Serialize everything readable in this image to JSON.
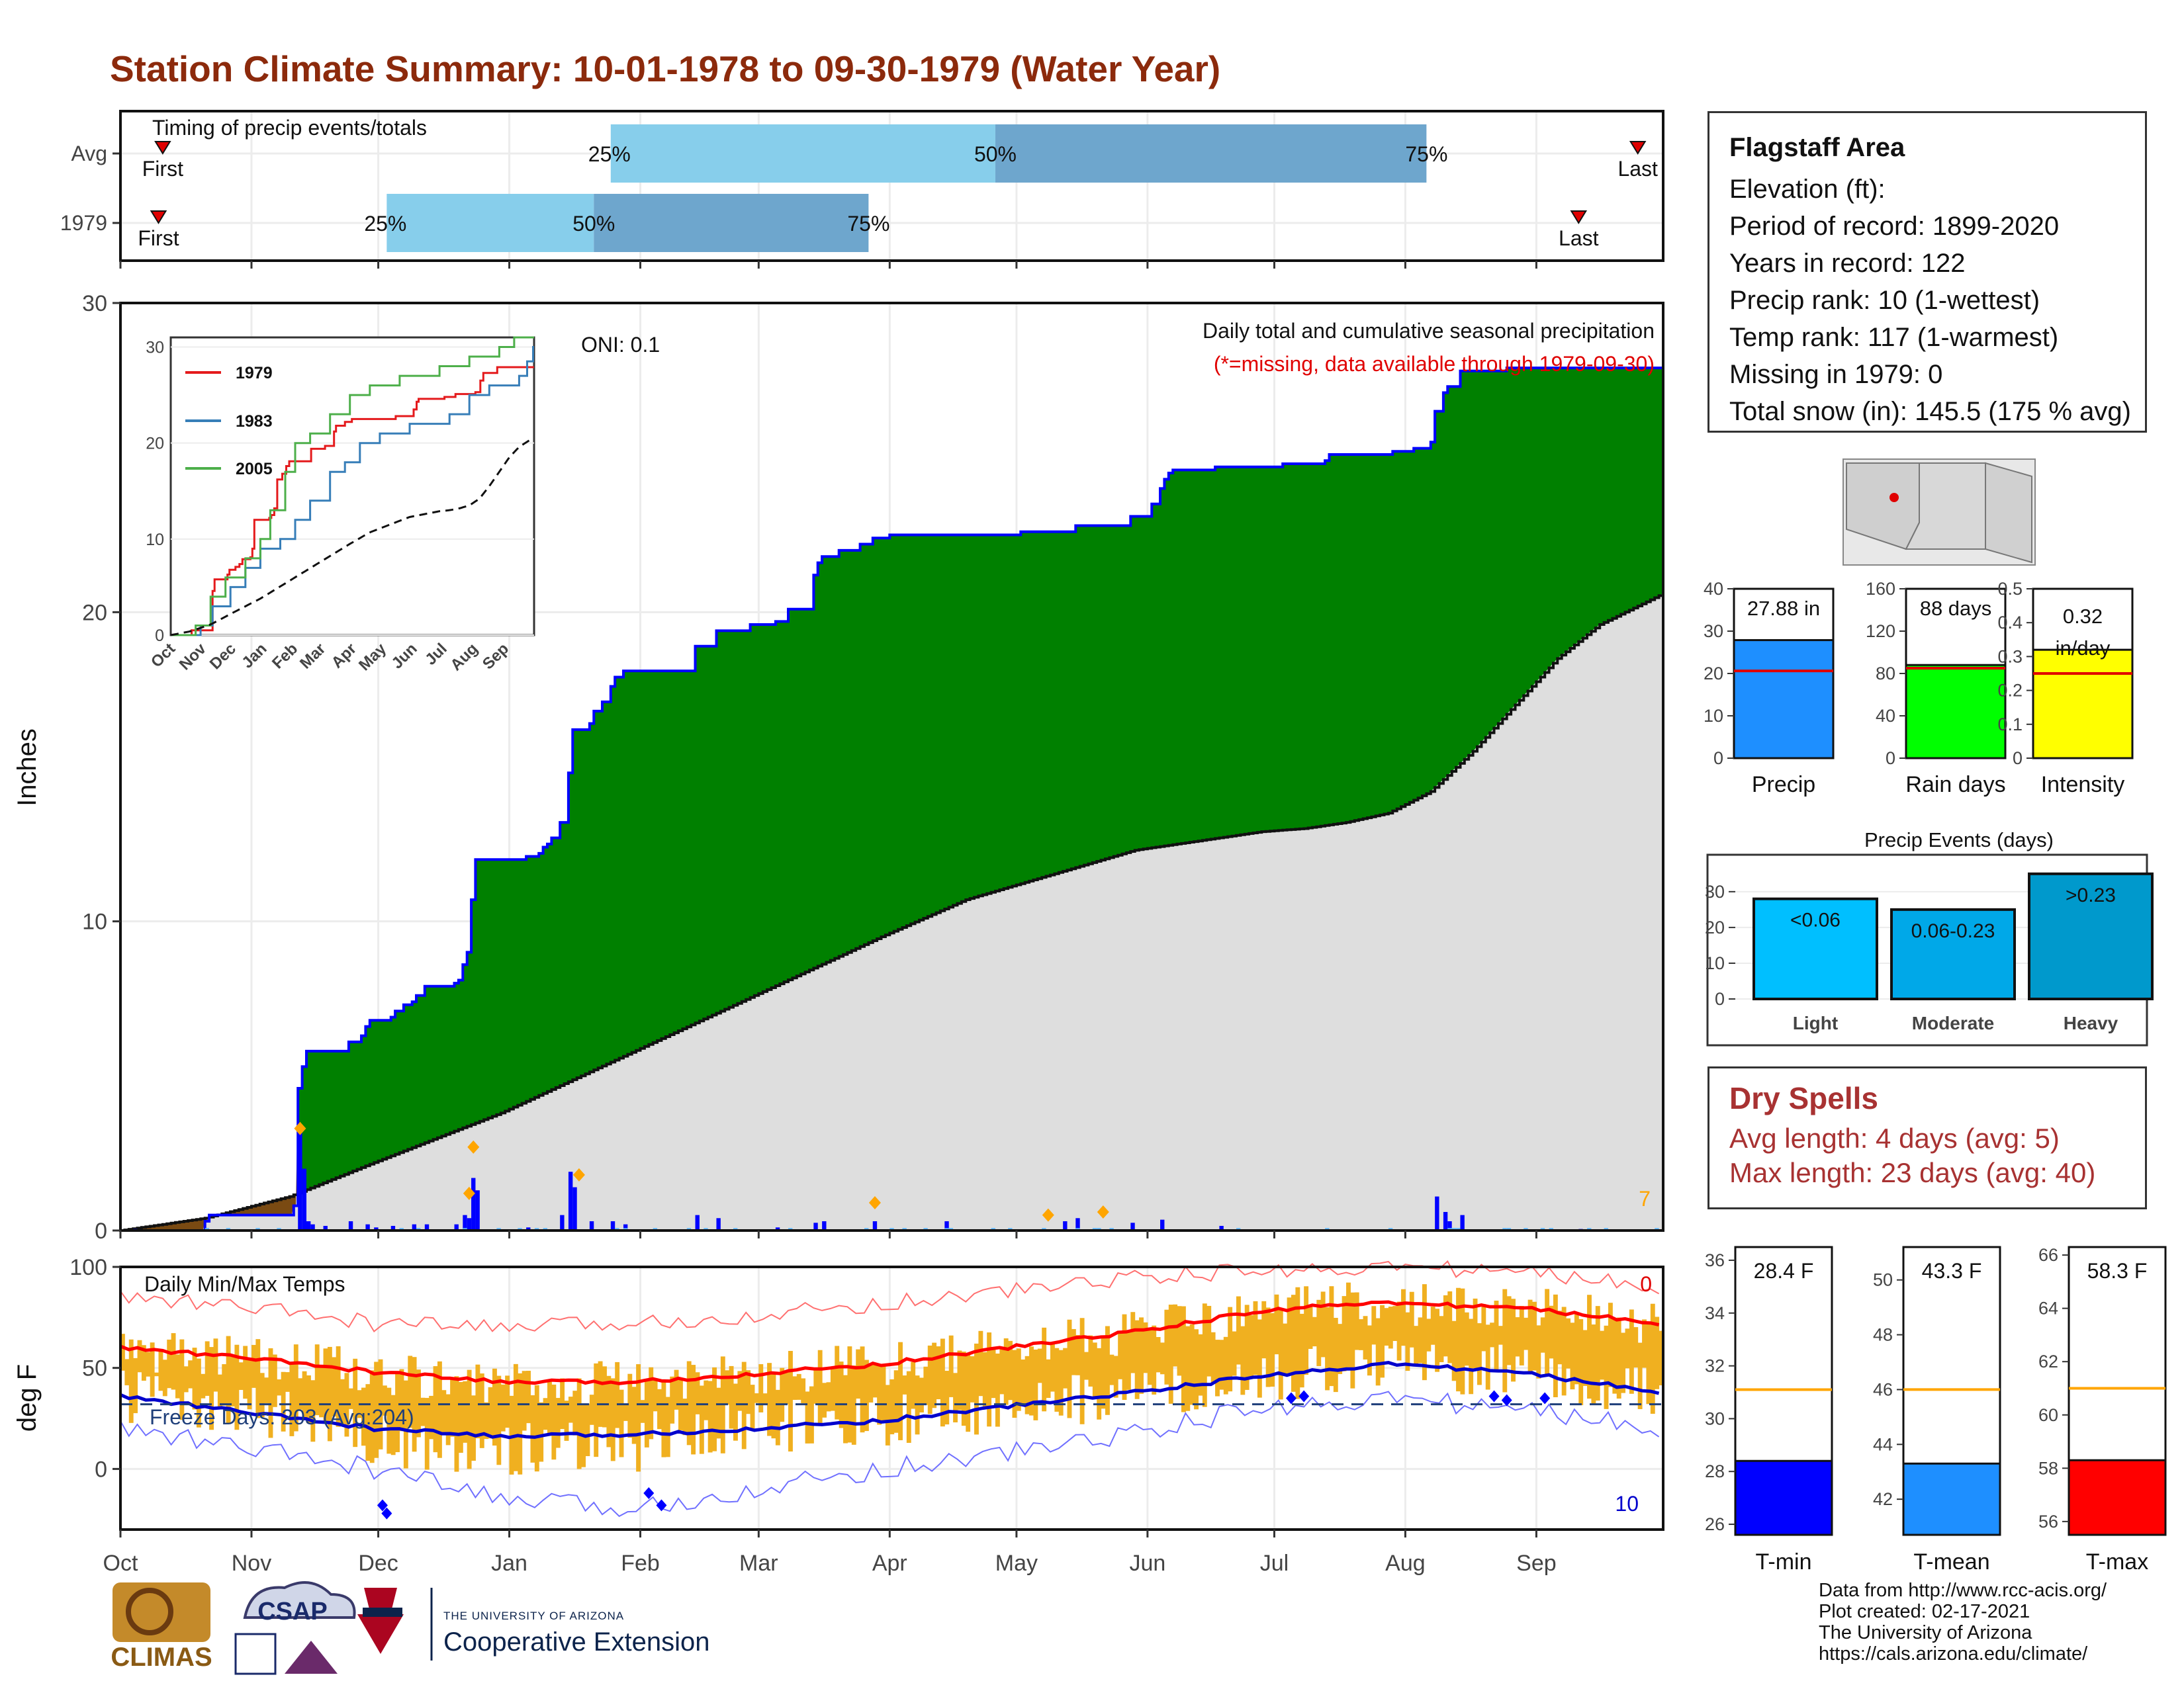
{
  "title": "Station Climate Summary: 10-01-1978 to 09-30-1979 (Water Year)",
  "colors": {
    "title": "#8c2a0c",
    "cumulative_fill": "#008000",
    "average_fill": "#dedede",
    "prior_fill": "#7a4a12",
    "outline": "#0000ff",
    "temp_bar": "#f0b020",
    "max_line": "#ff0000",
    "min_line": "#0000cc",
    "dry_spell_text": "#a83232"
  },
  "station": {
    "name": "Flagstaff Area",
    "lines": [
      "Elevation (ft):",
      "Period of record: 1899-2020",
      "Years in record: 122",
      "Precip rank: 10 (1-wettest)",
      "Temp rank: 117 (1-warmest)",
      "Missing in 1979: 0",
      "Total snow (in): 145.5 (175 % avg)"
    ]
  },
  "dry_spells": {
    "title": "Dry Spells",
    "avg_line": "Avg length: 4 days (avg: 5)",
    "max_line": "Max length: 23 days (avg: 40)"
  },
  "credits": [
    "Data from http://www.rcc-acis.org/",
    "Plot created: 02-17-2021",
    "The University of Arizona",
    "https://cals.arizona.edu/climate/"
  ],
  "logos": {
    "climas": "CLIMAS",
    "csap": "CSAP",
    "uofa_small": "THE UNIVERSITY OF ARIZONA",
    "uofa_big": "Cooperative Extension"
  },
  "months": [
    "Oct",
    "Nov",
    "Dec",
    "Jan",
    "Feb",
    "Mar",
    "Apr",
    "May",
    "Jun",
    "Jul",
    "Aug",
    "Sep"
  ],
  "chart_data": [
    {
      "type": "bar",
      "panel": "timing",
      "title": "Timing of precip events/totals",
      "rows": [
        {
          "name": "Avg",
          "first_day": 10,
          "p25_day": 116,
          "p50_day": 207,
          "p75_day": 309,
          "last_day": 359,
          "labels": {
            "first": "First",
            "p25": "25%",
            "p50": "50%",
            "p75": "75%",
            "last": "Last"
          }
        },
        {
          "name": "1979",
          "first_day": 9,
          "p25_day": 63,
          "p50_day": 112,
          "p75_day": 177,
          "last_day": 345,
          "labels": {
            "first": "First",
            "p25": "25%",
            "p50": "50%",
            "p75": "75%",
            "last": "Last"
          }
        }
      ]
    },
    {
      "type": "area",
      "panel": "precipitation",
      "ylabel": "Inches",
      "ylim": [
        0,
        30
      ],
      "yticks": [
        0,
        10,
        20,
        30
      ],
      "annotation_oni": "ONI: 0.1",
      "subtitle": "Daily total and cumulative seasonal precipitation",
      "note": "(*=missing, data available through 1979-09-30)",
      "corner_label": "7",
      "cumulative_steps": [
        [
          0,
          0
        ],
        [
          20,
          0.3
        ],
        [
          21,
          0.5
        ],
        [
          41,
          0.8
        ],
        [
          42,
          4.6
        ],
        [
          43,
          5.3
        ],
        [
          44,
          5.8
        ],
        [
          54,
          6.1
        ],
        [
          57,
          6.3
        ],
        [
          58,
          6.6
        ],
        [
          59,
          6.8
        ],
        [
          64,
          6.9
        ],
        [
          65,
          7.1
        ],
        [
          67,
          7.3
        ],
        [
          69,
          7.4
        ],
        [
          70,
          7.6
        ],
        [
          72,
          7.9
        ],
        [
          79,
          8.0
        ],
        [
          80,
          8.1
        ],
        [
          81,
          8.6
        ],
        [
          82,
          9.0
        ],
        [
          83,
          10.7
        ],
        [
          84,
          12.0
        ],
        [
          96,
          12.1
        ],
        [
          99,
          12.2
        ],
        [
          100,
          12.4
        ],
        [
          101,
          12.5
        ],
        [
          102,
          12.7
        ],
        [
          104,
          13.2
        ],
        [
          106,
          14.8
        ],
        [
          107,
          16.2
        ],
        [
          111,
          16.4
        ],
        [
          112,
          16.8
        ],
        [
          114,
          17.1
        ],
        [
          116,
          17.6
        ],
        [
          117,
          17.9
        ],
        [
          119,
          18.1
        ],
        [
          136,
          18.9
        ],
        [
          141,
          19.4
        ],
        [
          149,
          19.6
        ],
        [
          155,
          19.7
        ],
        [
          158,
          20.1
        ],
        [
          164,
          21.2
        ],
        [
          165,
          21.6
        ],
        [
          166,
          21.8
        ],
        [
          170,
          22.0
        ],
        [
          175,
          22.2
        ],
        [
          178,
          22.4
        ],
        [
          182,
          22.5
        ],
        [
          213,
          22.6
        ],
        [
          226,
          22.8
        ],
        [
          239,
          23.1
        ],
        [
          244,
          23.5
        ],
        [
          246,
          24.0
        ],
        [
          247,
          24.3
        ],
        [
          248,
          24.5
        ],
        [
          249,
          24.6
        ],
        [
          259,
          24.7
        ],
        [
          275,
          24.8
        ],
        [
          285,
          24.9
        ],
        [
          286,
          25.1
        ],
        [
          301,
          25.2
        ],
        [
          306,
          25.3
        ],
        [
          310,
          25.5
        ],
        [
          311,
          26.5
        ],
        [
          313,
          27.1
        ],
        [
          314,
          27.3
        ],
        [
          317,
          27.8
        ],
        [
          328,
          27.9
        ],
        [
          365,
          27.9
        ]
      ],
      "average_curve": [
        [
          0,
          0
        ],
        [
          20,
          0.4
        ],
        [
          40,
          1.1
        ],
        [
          60,
          2.2
        ],
        [
          90,
          3.8
        ],
        [
          120,
          5.7
        ],
        [
          150,
          7.6
        ],
        [
          180,
          9.5
        ],
        [
          200,
          10.7
        ],
        [
          220,
          11.5
        ],
        [
          240,
          12.3
        ],
        [
          260,
          12.7
        ],
        [
          270,
          12.9
        ],
        [
          280,
          13.0
        ],
        [
          290,
          13.2
        ],
        [
          300,
          13.5
        ],
        [
          310,
          14.2
        ],
        [
          320,
          15.5
        ],
        [
          330,
          17.0
        ],
        [
          340,
          18.5
        ],
        [
          350,
          19.6
        ],
        [
          365,
          20.6
        ]
      ],
      "daily_bars": [
        [
          3,
          0.05
        ],
        [
          20,
          0.05
        ],
        [
          42,
          3.3
        ],
        [
          43,
          2.0
        ],
        [
          44,
          0.3
        ],
        [
          45,
          0.2
        ],
        [
          48,
          0.15
        ],
        [
          54,
          0.3
        ],
        [
          58,
          0.2
        ],
        [
          60,
          0.1
        ],
        [
          64,
          0.15
        ],
        [
          69,
          0.2
        ],
        [
          72,
          0.2
        ],
        [
          79,
          0.2
        ],
        [
          81,
          0.5
        ],
        [
          82,
          0.4
        ],
        [
          83,
          1.7
        ],
        [
          84,
          1.3
        ],
        [
          96,
          0.1
        ],
        [
          104,
          0.5
        ],
        [
          106,
          1.9
        ],
        [
          107,
          1.4
        ],
        [
          111,
          0.3
        ],
        [
          116,
          0.3
        ],
        [
          119,
          0.2
        ],
        [
          136,
          0.5
        ],
        [
          141,
          0.4
        ],
        [
          155,
          0.1
        ],
        [
          164,
          0.25
        ],
        [
          166,
          0.3
        ],
        [
          178,
          0.3
        ],
        [
          195,
          0.3
        ],
        [
          223,
          0.3
        ],
        [
          226,
          0.4
        ],
        [
          239,
          0.25
        ],
        [
          246,
          0.35
        ],
        [
          260,
          0.15
        ],
        [
          311,
          1.1
        ],
        [
          313,
          0.6
        ],
        [
          314,
          0.3
        ],
        [
          317,
          0.5
        ],
        [
          345,
          0.05
        ]
      ],
      "markers": [
        [
          42,
          3.3
        ],
        [
          83,
          2.7
        ],
        [
          82,
          1.2
        ],
        [
          108,
          1.8
        ],
        [
          178,
          0.9
        ],
        [
          219,
          0.5
        ],
        [
          232,
          0.6
        ]
      ]
    },
    {
      "type": "bar",
      "panel": "temperature",
      "title": "Daily Min/Max Temps",
      "ylabel": "deg F",
      "ylim": [
        -30,
        100
      ],
      "yticks": [
        0,
        50,
        100
      ],
      "freeze_label": "Freeze Days: 203 (Avg:204)",
      "freeze_level": 32,
      "hot_days_label": "0",
      "cold_days_label": "10",
      "avg_max": [
        [
          0,
          60
        ],
        [
          30,
          55
        ],
        [
          60,
          48
        ],
        [
          90,
          43
        ],
        [
          120,
          43
        ],
        [
          150,
          47
        ],
        [
          180,
          52
        ],
        [
          210,
          60
        ],
        [
          240,
          68
        ],
        [
          270,
          78
        ],
        [
          290,
          82
        ],
        [
          300,
          82
        ],
        [
          330,
          80
        ],
        [
          365,
          72
        ]
      ],
      "avg_min": [
        [
          0,
          36
        ],
        [
          30,
          28
        ],
        [
          60,
          20
        ],
        [
          90,
          16
        ],
        [
          120,
          17
        ],
        [
          150,
          20
        ],
        [
          180,
          24
        ],
        [
          210,
          31
        ],
        [
          240,
          38
        ],
        [
          270,
          46
        ],
        [
          300,
          52
        ],
        [
          330,
          48
        ],
        [
          365,
          38
        ]
      ],
      "rec_max": [
        [
          0,
          85
        ],
        [
          30,
          80
        ],
        [
          60,
          72
        ],
        [
          90,
          70
        ],
        [
          120,
          72
        ],
        [
          150,
          76
        ],
        [
          180,
          82
        ],
        [
          210,
          88
        ],
        [
          240,
          95
        ],
        [
          270,
          98
        ],
        [
          300,
          100
        ],
        [
          330,
          98
        ],
        [
          365,
          90
        ]
      ],
      "rec_min": [
        [
          0,
          20
        ],
        [
          30,
          10
        ],
        [
          60,
          0
        ],
        [
          90,
          -15
        ],
        [
          120,
          -20
        ],
        [
          150,
          -10
        ],
        [
          180,
          0
        ],
        [
          210,
          8
        ],
        [
          240,
          18
        ],
        [
          270,
          30
        ],
        [
          300,
          35
        ],
        [
          330,
          30
        ],
        [
          365,
          20
        ]
      ]
    },
    {
      "type": "bar",
      "panel": "summary_precip",
      "categories": [
        "Precip",
        "Rain days",
        "Intensity"
      ],
      "values": [
        27.88,
        88,
        0.32
      ],
      "averages": [
        20.6,
        85,
        0.25
      ],
      "value_labels": [
        "27.88 in",
        "88 days",
        "0.32 in/day"
      ],
      "ylims": [
        [
          0,
          40
        ],
        [
          0,
          160
        ],
        [
          0,
          0.5
        ]
      ]
    },
    {
      "type": "bar",
      "panel": "precip_events",
      "title": "Precip Events (days)",
      "categories": [
        "Light",
        "Moderate",
        "Heavy"
      ],
      "values": [
        28,
        25,
        35
      ],
      "value_labels": [
        "<0.06",
        "0.06-0.23",
        ">0.23"
      ],
      "ylim": [
        0,
        37
      ]
    },
    {
      "type": "bar",
      "panel": "summary_temps",
      "categories": [
        "T-min",
        "T-mean",
        "T-max"
      ],
      "values": [
        28.4,
        43.3,
        58.3
      ],
      "averages": [
        31.1,
        46.0,
        61.0
      ],
      "value_labels": [
        "28.4 F",
        "43.3 F",
        "58.3 F"
      ],
      "ylims": [
        [
          25.6,
          36.5
        ],
        [
          40.7,
          51.2
        ],
        [
          55.5,
          66.3
        ]
      ]
    }
  ]
}
